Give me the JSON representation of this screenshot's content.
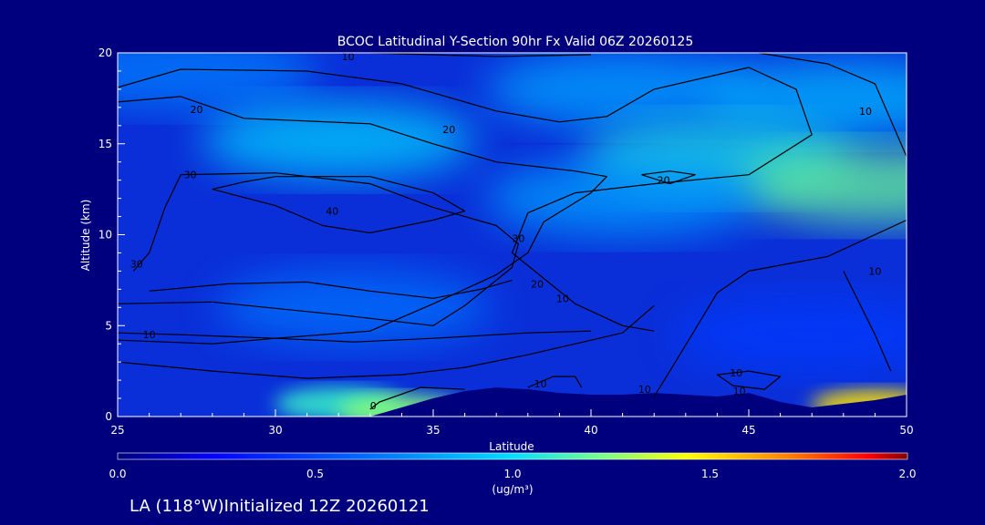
{
  "chart_data": {
    "type": "heatmap",
    "title": "BCOC Latitudinal Y-Section 90hr  Fx Valid 06Z 20260125",
    "xlabel": "Latitude",
    "ylabel": "Altitude (km)",
    "xlim": [
      25,
      50
    ],
    "ylim": [
      0,
      20
    ],
    "xticks": [
      25,
      30,
      35,
      40,
      45,
      50
    ],
    "yticks": [
      0,
      5,
      10,
      15,
      20
    ],
    "colorbar": {
      "label": "(ug/m³)",
      "range": [
        0.0,
        2.0
      ],
      "ticks": [
        "0.0",
        "0.5",
        "1.0",
        "1.5",
        "2.0"
      ]
    },
    "background_color": "#00007f",
    "shaded_field": [
      {
        "lat": 27.0,
        "alt": 19.0,
        "value": 0.7
      },
      {
        "lat": 41.0,
        "alt": 18.0,
        "value": 0.82
      },
      {
        "lat": 48.0,
        "alt": 17.5,
        "value": 0.88
      },
      {
        "lat": 32.0,
        "alt": 15.2,
        "value": 0.95
      },
      {
        "lat": 44.0,
        "alt": 14.2,
        "value": 1.05
      },
      {
        "lat": 49.0,
        "alt": 12.7,
        "value": 1.2
      },
      {
        "lat": 41.0,
        "alt": 12.0,
        "value": 0.8
      },
      {
        "lat": 32.5,
        "alt": 6.0,
        "value": 0.65
      },
      {
        "lat": 32.0,
        "alt": 0.7,
        "value": 1.1
      },
      {
        "lat": 34.0,
        "alt": 0.3,
        "value": 1.25
      },
      {
        "lat": 49.0,
        "alt": 0.6,
        "value": 1.5
      },
      {
        "lat": 47.0,
        "alt": 4.5,
        "value": 0.45
      }
    ],
    "contours": [
      {
        "level": 10,
        "label": "10",
        "points": [
          [
            33,
            20.0
          ],
          [
            37,
            19.8
          ],
          [
            40,
            19.9
          ]
        ]
      },
      {
        "level": 10,
        "label": "10",
        "points": [
          [
            45.3,
            20.0
          ],
          [
            47.5,
            19.4
          ],
          [
            49,
            18.3
          ],
          [
            50,
            14.3
          ]
        ]
      },
      {
        "level": 20,
        "label": "20",
        "points": [
          [
            25,
            18.1
          ],
          [
            27,
            19.1
          ],
          [
            31,
            19.0
          ],
          [
            34,
            18.3
          ],
          [
            37,
            16.8
          ],
          [
            39,
            16.2
          ],
          [
            40.5,
            16.5
          ],
          [
            42,
            18.0
          ],
          [
            45,
            19.2
          ],
          [
            46.5,
            18.0
          ],
          [
            47,
            15.5
          ],
          [
            45,
            13.3
          ],
          [
            42,
            12.8
          ],
          [
            39.5,
            12.3
          ],
          [
            38,
            11.2
          ],
          [
            37.5,
            9.0
          ],
          [
            38.5,
            7.6
          ],
          [
            39.5,
            6.2
          ],
          [
            41,
            5.0
          ],
          [
            42,
            4.7
          ]
        ]
      },
      {
        "level": 20,
        "label": "20",
        "points": [
          [
            41.6,
            13.3
          ],
          [
            42.5,
            13.5
          ],
          [
            43.3,
            13.3
          ],
          [
            42.5,
            12.8
          ],
          [
            41.6,
            13.3
          ]
        ]
      },
      {
        "level": 20,
        "label": "",
        "points": [
          [
            25,
            17.3
          ],
          [
            27,
            17.6
          ],
          [
            29,
            16.4
          ],
          [
            33,
            16.1
          ],
          [
            35,
            15.0
          ],
          [
            37,
            14.0
          ],
          [
            39.5,
            13.5
          ],
          [
            40.5,
            13.2
          ],
          [
            40,
            12.3
          ],
          [
            38.5,
            10.7
          ],
          [
            38,
            9.0
          ],
          [
            37,
            7.8
          ],
          [
            35,
            6.2
          ],
          [
            33,
            4.7
          ],
          [
            30,
            4.3
          ],
          [
            28,
            4.0
          ],
          [
            25,
            4.2
          ]
        ]
      },
      {
        "level": 30,
        "label": "30",
        "points": [
          [
            25,
            6.2
          ],
          [
            28,
            6.3
          ],
          [
            32,
            5.6
          ],
          [
            35,
            5.0
          ],
          [
            36,
            6.1
          ],
          [
            37.5,
            8.2
          ],
          [
            37.7,
            9.5
          ],
          [
            37,
            10.5
          ],
          [
            35,
            11.5
          ],
          [
            33,
            12.8
          ],
          [
            30,
            13.4
          ],
          [
            27,
            13.3
          ],
          [
            26.5,
            11.5
          ],
          [
            26,
            9.0
          ],
          [
            25.5,
            8.0
          ]
        ]
      },
      {
        "level": 40,
        "label": "40",
        "points": [
          [
            28,
            12.5
          ],
          [
            30,
            11.6
          ],
          [
            31.5,
            10.5
          ],
          [
            33,
            10.1
          ],
          [
            35,
            10.8
          ],
          [
            36,
            11.3
          ],
          [
            35,
            12.3
          ],
          [
            33,
            13.2
          ],
          [
            30,
            13.2
          ],
          [
            29,
            12.9
          ],
          [
            28,
            12.5
          ]
        ]
      },
      {
        "level": 20,
        "label": "20",
        "points": [
          [
            26,
            6.9
          ],
          [
            28.5,
            7.3
          ],
          [
            31,
            7.4
          ],
          [
            33,
            6.9
          ],
          [
            35,
            6.5
          ],
          [
            36.5,
            7.0
          ],
          [
            37.5,
            7.5
          ]
        ]
      },
      {
        "level": 10,
        "label": "10",
        "points": [
          [
            25,
            4.6
          ],
          [
            27,
            4.5
          ],
          [
            30,
            4.3
          ],
          [
            32.5,
            4.1
          ],
          [
            35,
            4.3
          ],
          [
            38,
            4.6
          ],
          [
            40,
            4.7
          ]
        ]
      },
      {
        "level": 10,
        "label": "10",
        "points": [
          [
            25,
            3.0
          ],
          [
            28,
            2.5
          ],
          [
            31,
            2.1
          ],
          [
            34,
            2.3
          ],
          [
            36,
            2.7
          ],
          [
            38,
            3.4
          ],
          [
            39.5,
            4.0
          ],
          [
            41,
            4.6
          ],
          [
            42,
            6.1
          ]
        ]
      },
      {
        "level": 10,
        "label": "10",
        "points": [
          [
            42,
            1.1
          ],
          [
            42.5,
            2.5
          ],
          [
            44,
            6.8
          ],
          [
            45,
            8.0
          ],
          [
            47.5,
            8.8
          ],
          [
            50,
            10.8
          ]
        ]
      },
      {
        "level": 10,
        "label": "",
        "points": [
          [
            38,
            1.6
          ],
          [
            38.8,
            2.2
          ],
          [
            39.5,
            2.2
          ],
          [
            39.7,
            1.6
          ]
        ]
      },
      {
        "level": 0,
        "label": "0",
        "points": [
          [
            33,
            0.4
          ],
          [
            33.3,
            0.8
          ],
          [
            34.6,
            1.6
          ],
          [
            36,
            1.5
          ]
        ]
      },
      {
        "level": 10,
        "label": "",
        "points": [
          [
            45,
            2.5
          ],
          [
            46,
            2.2
          ],
          [
            45.5,
            1.5
          ],
          [
            44.5,
            1.7
          ],
          [
            44,
            2.3
          ],
          [
            45,
            2.5
          ]
        ]
      },
      {
        "level": 10,
        "label": "",
        "points": [
          [
            48,
            8.0
          ],
          [
            49,
            4.5
          ],
          [
            49.5,
            2.5
          ]
        ]
      }
    ],
    "contour_labels": [
      {
        "text": "10",
        "lat": 32.3,
        "alt": 19.8
      },
      {
        "text": "20",
        "lat": 27.5,
        "alt": 16.9
      },
      {
        "text": "20",
        "lat": 35.5,
        "alt": 15.8
      },
      {
        "text": "10",
        "lat": 48.7,
        "alt": 16.8
      },
      {
        "text": "20",
        "lat": 42.3,
        "alt": 13.0
      },
      {
        "text": "30",
        "lat": 27.3,
        "alt": 13.3
      },
      {
        "text": "40",
        "lat": 31.8,
        "alt": 11.3
      },
      {
        "text": "30",
        "lat": 25.6,
        "alt": 8.4
      },
      {
        "text": "30",
        "lat": 37.7,
        "alt": 9.8
      },
      {
        "text": "20",
        "lat": 38.3,
        "alt": 7.3
      },
      {
        "text": "10",
        "lat": 39.1,
        "alt": 6.5
      },
      {
        "text": "10",
        "lat": 26.0,
        "alt": 4.5
      },
      {
        "text": "10",
        "lat": 49.0,
        "alt": 8.0
      },
      {
        "text": "10",
        "lat": 44.6,
        "alt": 2.4
      },
      {
        "text": "0",
        "lat": 33.1,
        "alt": 0.6
      },
      {
        "text": "10",
        "lat": 38.4,
        "alt": 1.8
      },
      {
        "text": "10",
        "lat": 44.7,
        "alt": 1.4
      },
      {
        "text": "10",
        "lat": 41.7,
        "alt": 1.5
      }
    ],
    "terrain": [
      [
        33,
        0.0
      ],
      [
        34,
        0.5
      ],
      [
        35,
        1.0
      ],
      [
        36,
        1.4
      ],
      [
        37,
        1.6
      ],
      [
        38,
        1.5
      ],
      [
        39,
        1.3
      ],
      [
        40,
        1.2
      ],
      [
        41,
        1.2
      ],
      [
        42,
        1.3
      ],
      [
        43,
        1.2
      ],
      [
        44,
        1.1
      ],
      [
        45,
        1.3
      ],
      [
        46,
        0.8
      ],
      [
        47,
        0.5
      ],
      [
        48,
        0.7
      ],
      [
        49,
        0.9
      ],
      [
        50,
        1.2
      ]
    ]
  },
  "footer": {
    "run_info": "LA (118°W)Initialized 12Z 20260121"
  }
}
